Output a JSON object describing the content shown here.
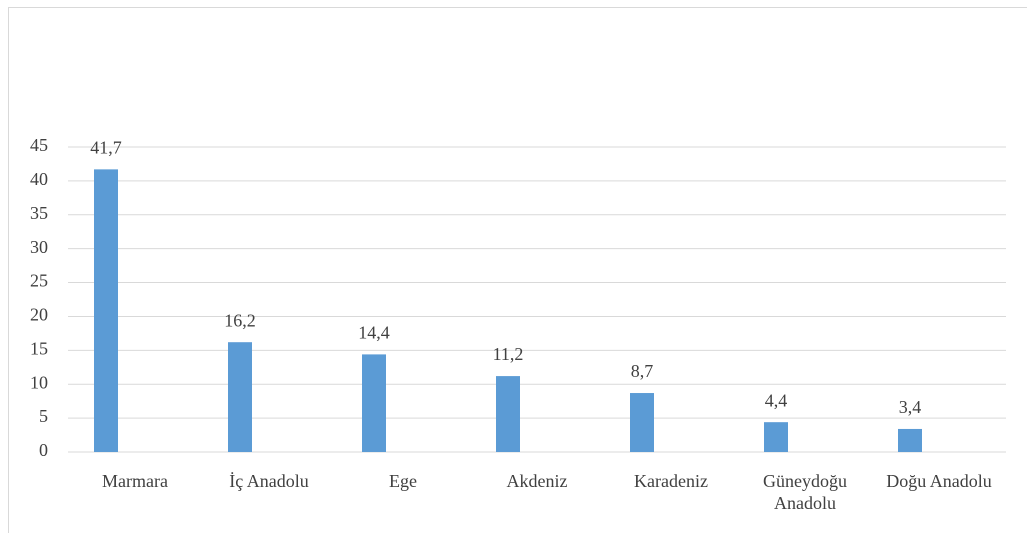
{
  "chart_data": {
    "type": "bar",
    "categories": [
      "Marmara",
      "İç Anadolu",
      "Ege",
      "Akdeniz",
      "Karadeniz",
      "Güneydoğu Anadolu",
      "Doğu Anadolu"
    ],
    "values": [
      41.7,
      16.2,
      14.4,
      11.2,
      8.7,
      4.4,
      3.4
    ],
    "value_labels": [
      "41,7",
      "16,2",
      "14,4",
      "11,2",
      "8,7",
      "4,4",
      "3,4"
    ],
    "color": "#5b9bd5",
    "ylim": [
      0,
      45
    ],
    "yticks": [
      0,
      5,
      10,
      15,
      20,
      25,
      30,
      35,
      40,
      45
    ],
    "grid": true
  }
}
